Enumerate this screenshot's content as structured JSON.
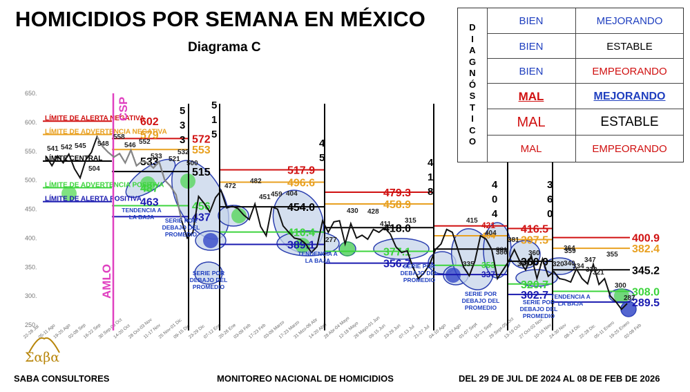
{
  "title": "HOMICIDIOS POR SEMANA EN MÉXICO",
  "subtitle": "Diagrama C",
  "legend": {
    "vertical_word": [
      "D",
      "I",
      "A",
      "G",
      "N",
      "Ó",
      "S",
      "T",
      "I",
      "C",
      "O"
    ],
    "rows": [
      {
        "left": "BIEN",
        "right": "MEJORANDO",
        "left_color": "#1f3fbf",
        "right_color": "#1f3fbf"
      },
      {
        "left": "BIEN",
        "right": "ESTABLE",
        "left_color": "#1f3fbf",
        "right_color": "#000000"
      },
      {
        "left": "BIEN",
        "right": "EMPEORANDO",
        "left_color": "#1f3fbf",
        "right_color": "#d01010"
      },
      {
        "left": "MAL",
        "right": "MEJORANDO",
        "left_color": "#d01010",
        "right_color": "#1f3fbf",
        "emphasis": true
      },
      {
        "left": "MAL",
        "right": "ESTABLE",
        "left_color": "#d01010",
        "right_color": "#000000",
        "large": true
      },
      {
        "left": "MAL",
        "right": "EMPEORANDO",
        "left_color": "#d01010",
        "right_color": "#d01010"
      }
    ]
  },
  "footer": {
    "company": "SABA CONSULTORES",
    "center": "MONITOREO NACIONAL DE HOMICIDIOS",
    "right": "DEL 29 DE JUL DE 2024 AL 08 DE FEB DE 2026",
    "logo": "Σαβα"
  },
  "colors": {
    "red": "#d01010",
    "orange": "#e8a020",
    "black": "#000000",
    "green": "#3cd43c",
    "blue": "#1a1ab0",
    "magenta": "#e040c0",
    "ellipse_fill": "#c5d4ea",
    "ellipse_stroke": "#2b3fb0"
  },
  "chart_data": {
    "type": "line",
    "y_ticks": [
      "650.",
      "600.",
      "550.",
      "500.",
      "450.",
      "400.",
      "350.",
      "300.",
      "250."
    ],
    "ylim": [
      250,
      650
    ],
    "x_ticks": [
      "22-28 Jul",
      "05-11 Ago",
      "19-25 Ago",
      "02-08 Sep",
      "16-22 Sep",
      "30 Sep-06 Oct",
      "14-20 Oct",
      "28 Oct-03 Nov",
      "11-17 Nov",
      "25 Nov-01 Dic",
      "09-15 Dic",
      "23-29 Dic",
      "07-12 Ene",
      "20-26 Ene",
      "03-09 Feb",
      "17-23 Feb",
      "03-09 Marzo",
      "17-23 Marzo",
      "31 Mzo-06 Abr",
      "14-20 Abril",
      "28 Abr-04 Mayo",
      "12-18 Mayo",
      "26 Mayo-01 Jun",
      "09-15 Jun",
      "23-29 Jun",
      "07-13 Jul",
      "21-27 Jul",
      "04-10 Ago",
      "18-24 Ago",
      "01-07 Sept",
      "15-21 Sept",
      "29 Sept-05 Oct",
      "13-19 Oct",
      "27 Oct-02 Nov",
      "10-16 Nov",
      "24-30 Nov",
      "08-14 Dic",
      "22-28 Dic",
      "05-11 Enero",
      "19-25 Enero",
      "02-08 Feb"
    ],
    "series": [
      {
        "values": [
          541,
          525,
          542,
          530,
          545,
          520,
          504,
          535,
          548,
          575,
          558,
          548,
          540,
          546,
          530,
          552,
          525,
          533,
          530,
          521,
          532,
          500,
          490,
          475,
          430,
          400,
          410,
          472,
          460,
          445,
          470,
          482,
          452,
          455,
          451,
          440,
          432,
          459,
          420,
          404,
          454,
          450,
          421,
          410,
          400,
          398,
          390,
          375,
          385,
          430,
          410,
          428,
          430,
          390,
          425,
          400,
          405,
          398,
          415,
          410,
          418,
          407,
          385,
          375,
          378,
          350,
          330,
          340,
          355,
          380,
          390,
          415,
          410,
          380,
          350,
          335,
          360,
          404,
          398,
          380,
          330,
          345,
          360,
          380,
          359,
          345,
          370,
          330,
          364,
          334,
          342,
          330,
          328,
          324,
          347,
          330,
          321,
          355,
          320,
          330,
          300,
          290,
          277,
          287
        ]
      }
    ],
    "segments": [
      {
        "red": "602",
        "orange": "579",
        "black": "533",
        "green": "487",
        "blue": "463"
      },
      {
        "red": "572",
        "orange": "553",
        "black": "515",
        "green": "456",
        "blue": "437"
      },
      {
        "red": "517.9",
        "orange": "496.6",
        "black": "454.0",
        "green": "410.4",
        "blue": "389.1"
      },
      {
        "red": "479.3",
        "orange": "458.9",
        "black": "418.0",
        "green": "377.1",
        "blue": "356.7"
      },
      {
        "red": "421",
        "orange": "404",
        "black": "381",
        "green": "353",
        "blue": "337"
      },
      {
        "red": "416.5",
        "orange": "397.5",
        "black": "360.0",
        "green": "320.7",
        "blue": "302.7"
      },
      {
        "red": "400.9",
        "orange": "382.4",
        "black": "345.2",
        "green": "308.0",
        "blue": "289.5"
      }
    ],
    "limit_labels": [
      {
        "text": "LÍMITE DE ALERTA NEGATIVA",
        "color": "#d01010"
      },
      {
        "text": "LÍMITE DE ADVERTENCIA NEGATIVA",
        "color": "#e8a020"
      },
      {
        "text": "LÍMITE CENTRAL",
        "color": "#000000"
      },
      {
        "text": "LÍMITE DE ADVERTENCIA POSITIVA",
        "color": "#3cd43c"
      },
      {
        "text": "LÍMITE DE ALERTA POSITIVA",
        "color": "#1a1ab0"
      }
    ],
    "point_labels": [
      "541",
      "542",
      "545",
      "504",
      "548",
      "558",
      "546",
      "552",
      "533",
      "521",
      "532",
      "500",
      "472",
      "482",
      "451",
      "459",
      "404",
      "430",
      "428",
      "411",
      "404",
      "415",
      "381",
      "364",
      "355",
      "300",
      "287",
      "277",
      "335",
      "360",
      "320",
      "330",
      "334",
      "347",
      "321",
      "340",
      "381",
      "380",
      "315",
      "359"
    ],
    "vertical_markers": [
      {
        "label": "AMLO",
        "color": "#e040c0"
      },
      {
        "label": "CSP",
        "color": "#e040c0"
      }
    ],
    "run_labels": [
      "5 3 3",
      "5 1 5",
      "4 5",
      "4 1 8",
      "4 0 4",
      "3 6 0"
    ],
    "annotations": [
      "TENDENCIA A LA BAJA",
      "SERIE POR DEBAJO DEL PROMEDIO",
      "SERIE POR DEBAJO DEL PROMEDIO",
      "TENDENCIA A LA BAJA",
      "SERIE POR DEBAJO DEL PROMEDIO",
      "SERIE POR DEBAJO DEL PROMEDIO",
      "SERIE POR DEBAJO DEL PROMEDIO",
      "TENDENCIA A LA BAJA"
    ]
  }
}
